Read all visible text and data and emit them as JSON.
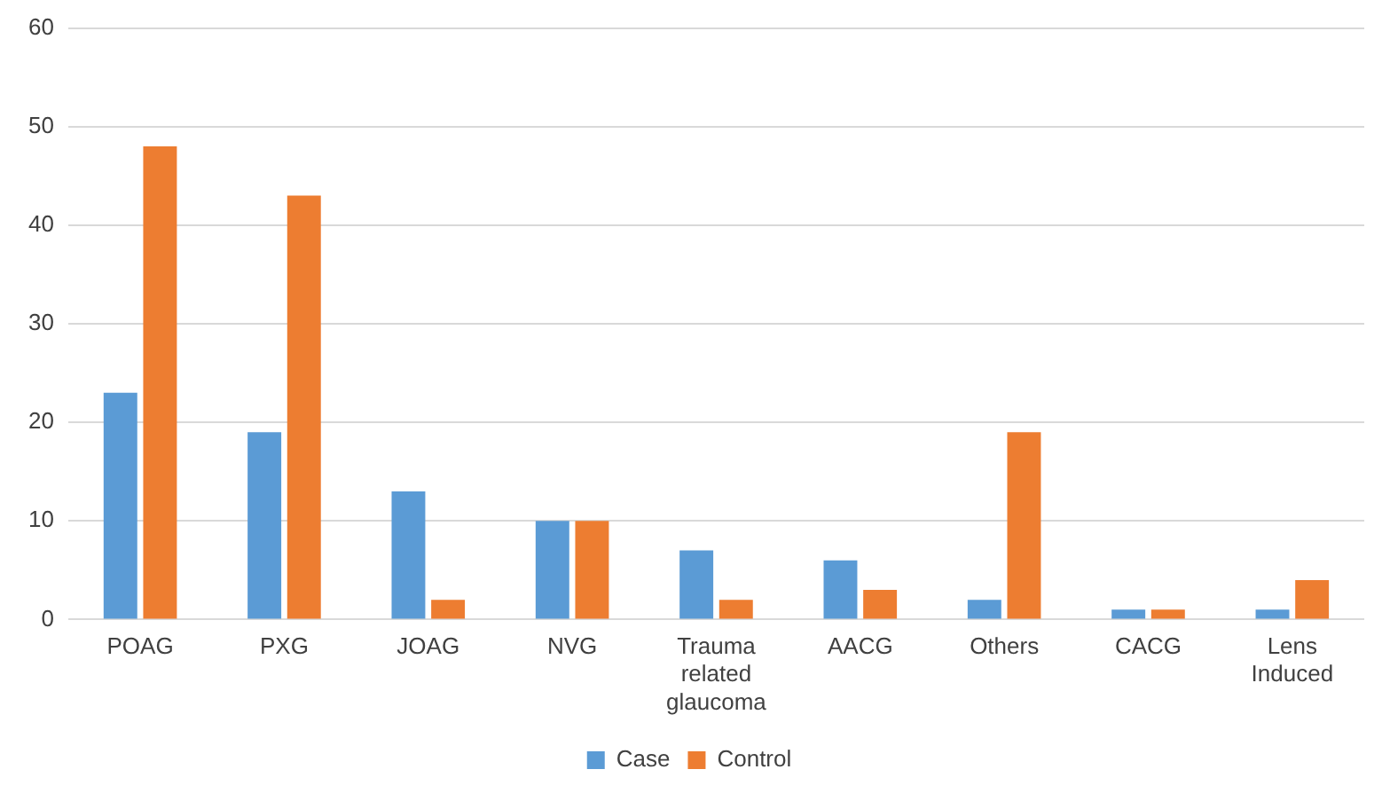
{
  "chart_data": {
    "type": "bar",
    "categories": [
      "POAG",
      "PXG",
      "JOAG",
      "NVG",
      "Trauma related glaucoma",
      "AACG",
      "Others",
      "CACG",
      "Lens Induced"
    ],
    "series": [
      {
        "name": "Case",
        "color": "#5b9bd5",
        "values": [
          23,
          19,
          13,
          10,
          7,
          6,
          2,
          1,
          1
        ]
      },
      {
        "name": "Control",
        "color": "#ed7d31",
        "values": [
          48,
          43,
          2,
          10,
          2,
          3,
          19,
          1,
          4
        ]
      }
    ],
    "ylim": [
      0,
      60
    ],
    "yticks": [
      0,
      10,
      20,
      30,
      40,
      50,
      60
    ],
    "grid": "y",
    "legend": "bottom"
  }
}
